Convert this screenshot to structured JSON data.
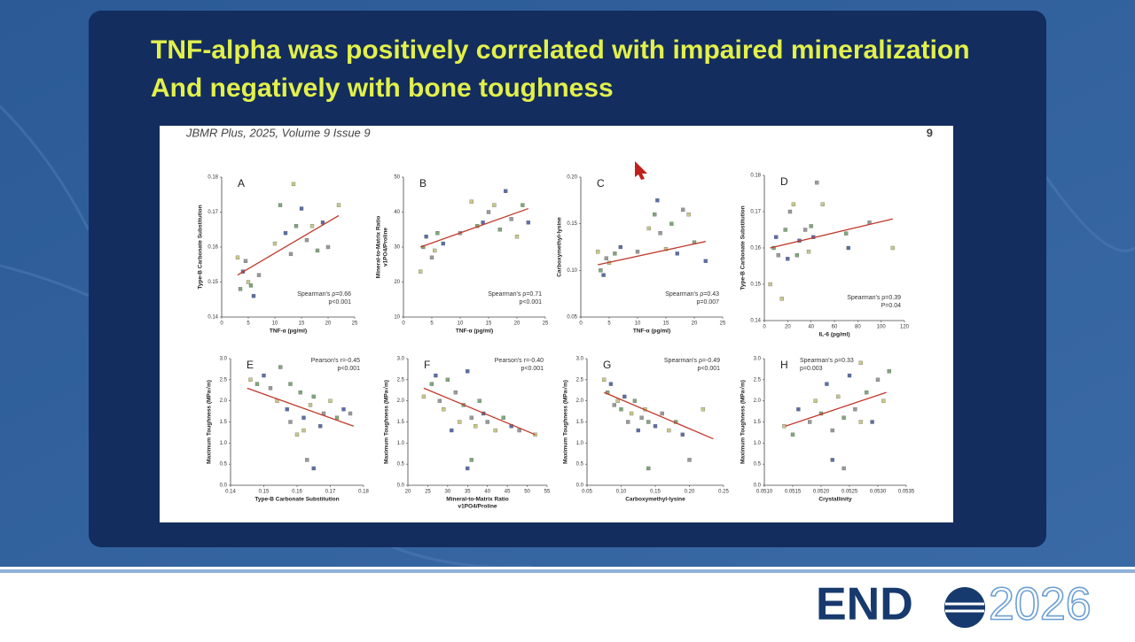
{
  "slide": {
    "title": [
      "TNF-alpha was positively correlated with impaired mineralization",
      "And negatively with bone toughness"
    ],
    "journal": "JBMR Plus, 2025, Volume 9 Issue 9",
    "page": "9",
    "logo_left": "END",
    "logo_right": "2026"
  },
  "chart_data": [
    {
      "type": "scatter",
      "label": "A",
      "xlabel": [
        "TNF-α (pg/ml)"
      ],
      "ylabel": [
        "Type-B Carbonate Substitution"
      ],
      "xlim": [
        0,
        25
      ],
      "xticks": [
        0,
        5,
        10,
        15,
        20,
        25
      ],
      "ylim": [
        0.14,
        0.18
      ],
      "yticks": [
        0.14,
        0.15,
        0.16,
        0.17,
        0.18
      ],
      "x": [
        3,
        3.5,
        4,
        4.5,
        5,
        5.5,
        6,
        7,
        10,
        11,
        12,
        13,
        13.5,
        14,
        15,
        16,
        17,
        18,
        19,
        20,
        22
      ],
      "values": [
        0.157,
        0.148,
        0.153,
        0.156,
        0.15,
        0.149,
        0.146,
        0.152,
        0.161,
        0.172,
        0.164,
        0.158,
        0.178,
        0.166,
        0.171,
        0.162,
        0.166,
        0.159,
        0.167,
        0.16,
        0.172
      ],
      "point_colors": [
        "#c9c98a",
        "#7fa87a",
        "#5b6fa8",
        "#9a9a9a"
      ],
      "trend": {
        "color": "#c0392b",
        "x": [
          3,
          22
        ],
        "values": [
          0.152,
          0.169
        ]
      },
      "annotations": [
        "Spearman's ρ=0.66",
        "p<0.001"
      ],
      "annotation_corner": "bottom-right"
    },
    {
      "type": "scatter",
      "label": "B",
      "xlabel": [
        "TNF-α (pg/ml)"
      ],
      "ylabel": [
        "Mineral-to-Matrix Ratio",
        "v1PO4/Proline"
      ],
      "xlim": [
        0,
        25
      ],
      "xticks": [
        0,
        5,
        10,
        15,
        20,
        25
      ],
      "ylim": [
        10,
        50
      ],
      "yticks": [
        10,
        20,
        30,
        40,
        50
      ],
      "x": [
        3,
        3.5,
        4,
        5,
        5.5,
        6,
        7,
        10,
        12,
        13,
        14,
        15,
        16,
        17,
        18,
        19,
        20,
        21,
        22
      ],
      "values": [
        23,
        30,
        33,
        27,
        29,
        34,
        31,
        34,
        43,
        36,
        37,
        40,
        42,
        35,
        46,
        38,
        33,
        42,
        37
      ],
      "point_colors": [
        "#c9c98a",
        "#7fa87a",
        "#5b6fa8",
        "#9a9a9a"
      ],
      "trend": {
        "color": "#c0392b",
        "x": [
          3,
          22
        ],
        "values": [
          30,
          41
        ]
      },
      "annotations": [
        "Spearman's ρ=0.71",
        "p<0.001"
      ],
      "annotation_corner": "bottom-right"
    },
    {
      "type": "scatter",
      "label": "C",
      "xlabel": [
        "TNF-α (pg/ml)"
      ],
      "ylabel": [
        "Carboxymethyl-lysine"
      ],
      "xlim": [
        0,
        25
      ],
      "xticks": [
        0,
        5,
        10,
        15,
        20,
        25
      ],
      "ylim": [
        0.05,
        0.2
      ],
      "yticks": [
        0.05,
        {
          "value": 0.1,
          "label": "0.10"
        },
        0.15,
        {
          "value": 0.2,
          "label": "0.20"
        }
      ],
      "x": [
        3,
        3.5,
        4,
        4.5,
        5,
        6,
        7,
        10,
        12,
        13,
        13.5,
        14,
        15,
        16,
        17,
        18,
        19,
        20,
        22
      ],
      "values": [
        0.12,
        0.1,
        0.095,
        0.113,
        0.108,
        0.118,
        0.125,
        0.12,
        0.145,
        0.16,
        0.175,
        0.14,
        0.123,
        0.15,
        0.118,
        0.165,
        0.16,
        0.13,
        0.11
      ],
      "point_colors": [
        "#c9c98a",
        "#7fa87a",
        "#5b6fa8",
        "#9a9a9a"
      ],
      "trend": {
        "color": "#c0392b",
        "x": [
          3,
          22
        ],
        "values": [
          0.106,
          0.131
        ]
      },
      "annotations": [
        "Spearman's ρ=0.43",
        "p=0.007"
      ],
      "annotation_corner": "bottom-right"
    },
    {
      "type": "scatter",
      "label": "D",
      "xlabel": [
        "IL-6 (pg/ml)"
      ],
      "ylabel": [
        "Type-B Carbonate Substitution"
      ],
      "xlim": [
        0,
        120
      ],
      "xticks": [
        0,
        20,
        40,
        60,
        80,
        100,
        120
      ],
      "ylim": [
        0.14,
        0.18
      ],
      "yticks": [
        0.14,
        0.15,
        0.16,
        0.17,
        0.18
      ],
      "x": [
        5,
        8,
        10,
        12,
        15,
        18,
        20,
        22,
        25,
        28,
        30,
        35,
        38,
        40,
        42,
        45,
        50,
        70,
        72,
        90,
        110
      ],
      "values": [
        0.15,
        0.16,
        0.163,
        0.158,
        0.146,
        0.165,
        0.157,
        0.17,
        0.172,
        0.158,
        0.162,
        0.165,
        0.159,
        0.166,
        0.163,
        0.178,
        0.172,
        0.164,
        0.16,
        0.167,
        0.16
      ],
      "point_colors": [
        "#c9c98a",
        "#7fa87a",
        "#5b6fa8",
        "#9a9a9a"
      ],
      "trend": {
        "color": "#c0392b",
        "x": [
          5,
          110
        ],
        "values": [
          0.16,
          0.168
        ]
      },
      "annotations": [
        "Spearman's ρ=0.39",
        "P=0.04"
      ],
      "annotation_corner": "bottom-right"
    },
    {
      "type": "scatter",
      "label": "E",
      "xlabel": [
        "Type-B Carbonate Substitution"
      ],
      "ylabel": [
        "Maximum Toughness (MPa√m)"
      ],
      "xlim": [
        0.14,
        0.18
      ],
      "xticks": [
        0.14,
        0.15,
        0.16,
        0.17,
        0.18
      ],
      "ylim": [
        0,
        3
      ],
      "yticks": [
        {
          "value": 0,
          "label": "0.0"
        },
        0.5,
        {
          "value": 1,
          "label": "1.0"
        },
        1.5,
        {
          "value": 2,
          "label": "2.0"
        },
        2.5,
        {
          "value": 3,
          "label": "3.0"
        }
      ],
      "x": [
        0.146,
        0.148,
        0.15,
        0.152,
        0.154,
        0.155,
        0.157,
        0.158,
        0.16,
        0.161,
        0.162,
        0.163,
        0.164,
        0.165,
        0.167,
        0.168,
        0.17,
        0.172,
        0.174,
        0.176,
        0.162,
        0.158,
        0.165
      ],
      "values": [
        2.5,
        2.4,
        2.6,
        2.3,
        2,
        2.8,
        1.8,
        1.5,
        1.2,
        2.2,
        1.6,
        0.6,
        1.9,
        2.1,
        1.4,
        1.7,
        2,
        1.6,
        1.8,
        1.7,
        1.3,
        2.4,
        0.4
      ],
      "point_colors": [
        "#c9c98a",
        "#7fa87a",
        "#5b6fa8",
        "#9a9a9a"
      ],
      "trend": {
        "color": "#c0392b",
        "x": [
          0.145,
          0.177
        ],
        "values": [
          2.3,
          1.4
        ]
      },
      "annotations": [
        "Pearson's r=-0.45",
        "p<0.001"
      ],
      "annotation_corner": "top-right"
    },
    {
      "type": "scatter",
      "label": "F",
      "xlabel": [
        "Mineral-to-Matrix Ratio",
        "v1PO4/Proline"
      ],
      "ylabel": [
        "Maximum Toughness (MPa√m)"
      ],
      "xlim": [
        20,
        55
      ],
      "xticks": [
        20,
        25,
        30,
        35,
        40,
        45,
        50,
        55
      ],
      "ylim": [
        0,
        3
      ],
      "yticks": [
        {
          "value": 0,
          "label": "0.0"
        },
        0.5,
        {
          "value": 1,
          "label": "1.0"
        },
        1.5,
        {
          "value": 2,
          "label": "2.0"
        },
        2.5,
        {
          "value": 3,
          "label": "3.0"
        }
      ],
      "x": [
        24,
        26,
        27,
        28,
        29,
        30,
        31,
        32,
        33,
        34,
        35,
        36,
        37,
        38,
        39,
        40,
        42,
        44,
        46,
        48,
        52,
        36,
        35
      ],
      "values": [
        2.1,
        2.4,
        2.6,
        2,
        1.8,
        2.5,
        1.3,
        2.2,
        1.5,
        1.9,
        2.7,
        1.6,
        1.4,
        2,
        1.7,
        1.5,
        1.3,
        1.6,
        1.4,
        1.3,
        1.2,
        0.6,
        0.4
      ],
      "point_colors": [
        "#c9c98a",
        "#7fa87a",
        "#5b6fa8",
        "#9a9a9a"
      ],
      "trend": {
        "color": "#c0392b",
        "x": [
          24,
          52
        ],
        "values": [
          2.3,
          1.2
        ]
      },
      "annotations": [
        "Pearson's r=-0.40",
        "p<0.001"
      ],
      "annotation_corner": "top-right"
    },
    {
      "type": "scatter",
      "label": "G",
      "xlabel": [
        "Carboxymethyl-lysine"
      ],
      "ylabel": [
        "Maximum Toughness (MPa√m)"
      ],
      "xlim": [
        0.05,
        0.25
      ],
      "xticks": [
        0.05,
        {
          "value": 0.1,
          "label": "0.10"
        },
        0.15,
        {
          "value": 0.2,
          "label": "0.20"
        },
        0.25
      ],
      "ylim": [
        0,
        3
      ],
      "yticks": [
        {
          "value": 0,
          "label": "0.0"
        },
        0.5,
        {
          "value": 1,
          "label": "1.0"
        },
        1.5,
        {
          "value": 2,
          "label": "2.0"
        },
        2.5,
        {
          "value": 3,
          "label": "3.0"
        }
      ],
      "x": [
        0.075,
        0.08,
        0.085,
        0.09,
        0.095,
        0.1,
        0.105,
        0.11,
        0.115,
        0.12,
        0.125,
        0.13,
        0.135,
        0.14,
        0.15,
        0.16,
        0.17,
        0.18,
        0.19,
        0.2,
        0.22,
        0.14
      ],
      "values": [
        2.5,
        2.2,
        2.4,
        1.9,
        2,
        1.8,
        2.1,
        1.5,
        1.7,
        2,
        1.3,
        1.6,
        1.8,
        1.5,
        1.4,
        1.7,
        1.3,
        1.5,
        1.2,
        0.6,
        1.8,
        0.4
      ],
      "point_colors": [
        "#c9c98a",
        "#7fa87a",
        "#5b6fa8",
        "#9a9a9a"
      ],
      "trend": {
        "color": "#c0392b",
        "x": [
          0.075,
          0.235
        ],
        "values": [
          2.2,
          1.1
        ]
      },
      "annotations": [
        "Spearman's ρ=-0.49",
        "p<0.001"
      ],
      "annotation_corner": "top-right"
    },
    {
      "type": "scatter",
      "label": "H",
      "xlabel": [
        "Crystallinity"
      ],
      "ylabel": [
        "Maximum Toughness (MPa√m)"
      ],
      "xlim": [
        0.051,
        0.0535
      ],
      "xticks": [
        {
          "value": 0.051,
          "label": "0.0510"
        },
        0.0515,
        {
          "value": 0.052,
          "label": "0.0520"
        },
        0.0525,
        {
          "value": 0.053,
          "label": "0.0530"
        },
        0.0535
      ],
      "ylim": [
        0,
        3
      ],
      "yticks": [
        {
          "value": 0,
          "label": "0.0"
        },
        0.5,
        {
          "value": 1,
          "label": "1.0"
        },
        1.5,
        {
          "value": 2,
          "label": "2.0"
        },
        2.5,
        {
          "value": 3,
          "label": "3.0"
        }
      ],
      "x": [
        0.05135,
        0.0515,
        0.0516,
        0.0518,
        0.0519,
        0.052,
        0.0521,
        0.0522,
        0.0523,
        0.0524,
        0.0525,
        0.0526,
        0.0527,
        0.0528,
        0.0529,
        0.053,
        0.0531,
        0.0532,
        0.0522,
        0.0524,
        0.0527
      ],
      "values": [
        1.4,
        1.2,
        1.8,
        1.5,
        2,
        1.7,
        2.4,
        1.3,
        2.1,
        1.6,
        2.6,
        1.8,
        2.9,
        2.2,
        1.5,
        2.5,
        2,
        2.7,
        0.6,
        0.4,
        1.5
      ],
      "point_colors": [
        "#c9c98a",
        "#7fa87a",
        "#5b6fa8",
        "#9a9a9a"
      ],
      "trend": {
        "color": "#c0392b",
        "x": [
          0.05137,
          0.05315
        ],
        "values": [
          1.4,
          2.2
        ]
      },
      "annotations": [
        "Spearman's ρ=0.33",
        "p=0.003"
      ],
      "annotation_corner": "top-left"
    }
  ]
}
